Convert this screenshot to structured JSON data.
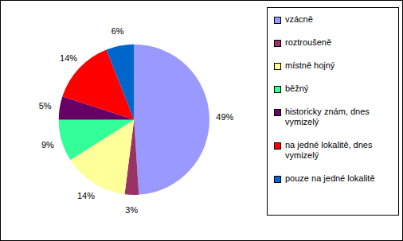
{
  "chart_data": {
    "type": "pie",
    "categories": [
      "vzácně",
      "roztroušeně",
      "místně hojný",
      "běžný",
      "historicky znám, dnes vymizelý",
      "na jedné lokalitě, dnes vymizelý",
      "pouze na jedné lokalitě"
    ],
    "values": [
      49,
      3,
      14,
      9,
      5,
      14,
      6
    ],
    "value_labels": [
      "49%",
      "3%",
      "14%",
      "9%",
      "5%",
      "14%",
      "6%"
    ],
    "colors": [
      "#9999ff",
      "#993366",
      "#ffff99",
      "#33ff99",
      "#660066",
      "#ff0000",
      "#0066cc"
    ],
    "data_labels": true,
    "legend": "right"
  }
}
